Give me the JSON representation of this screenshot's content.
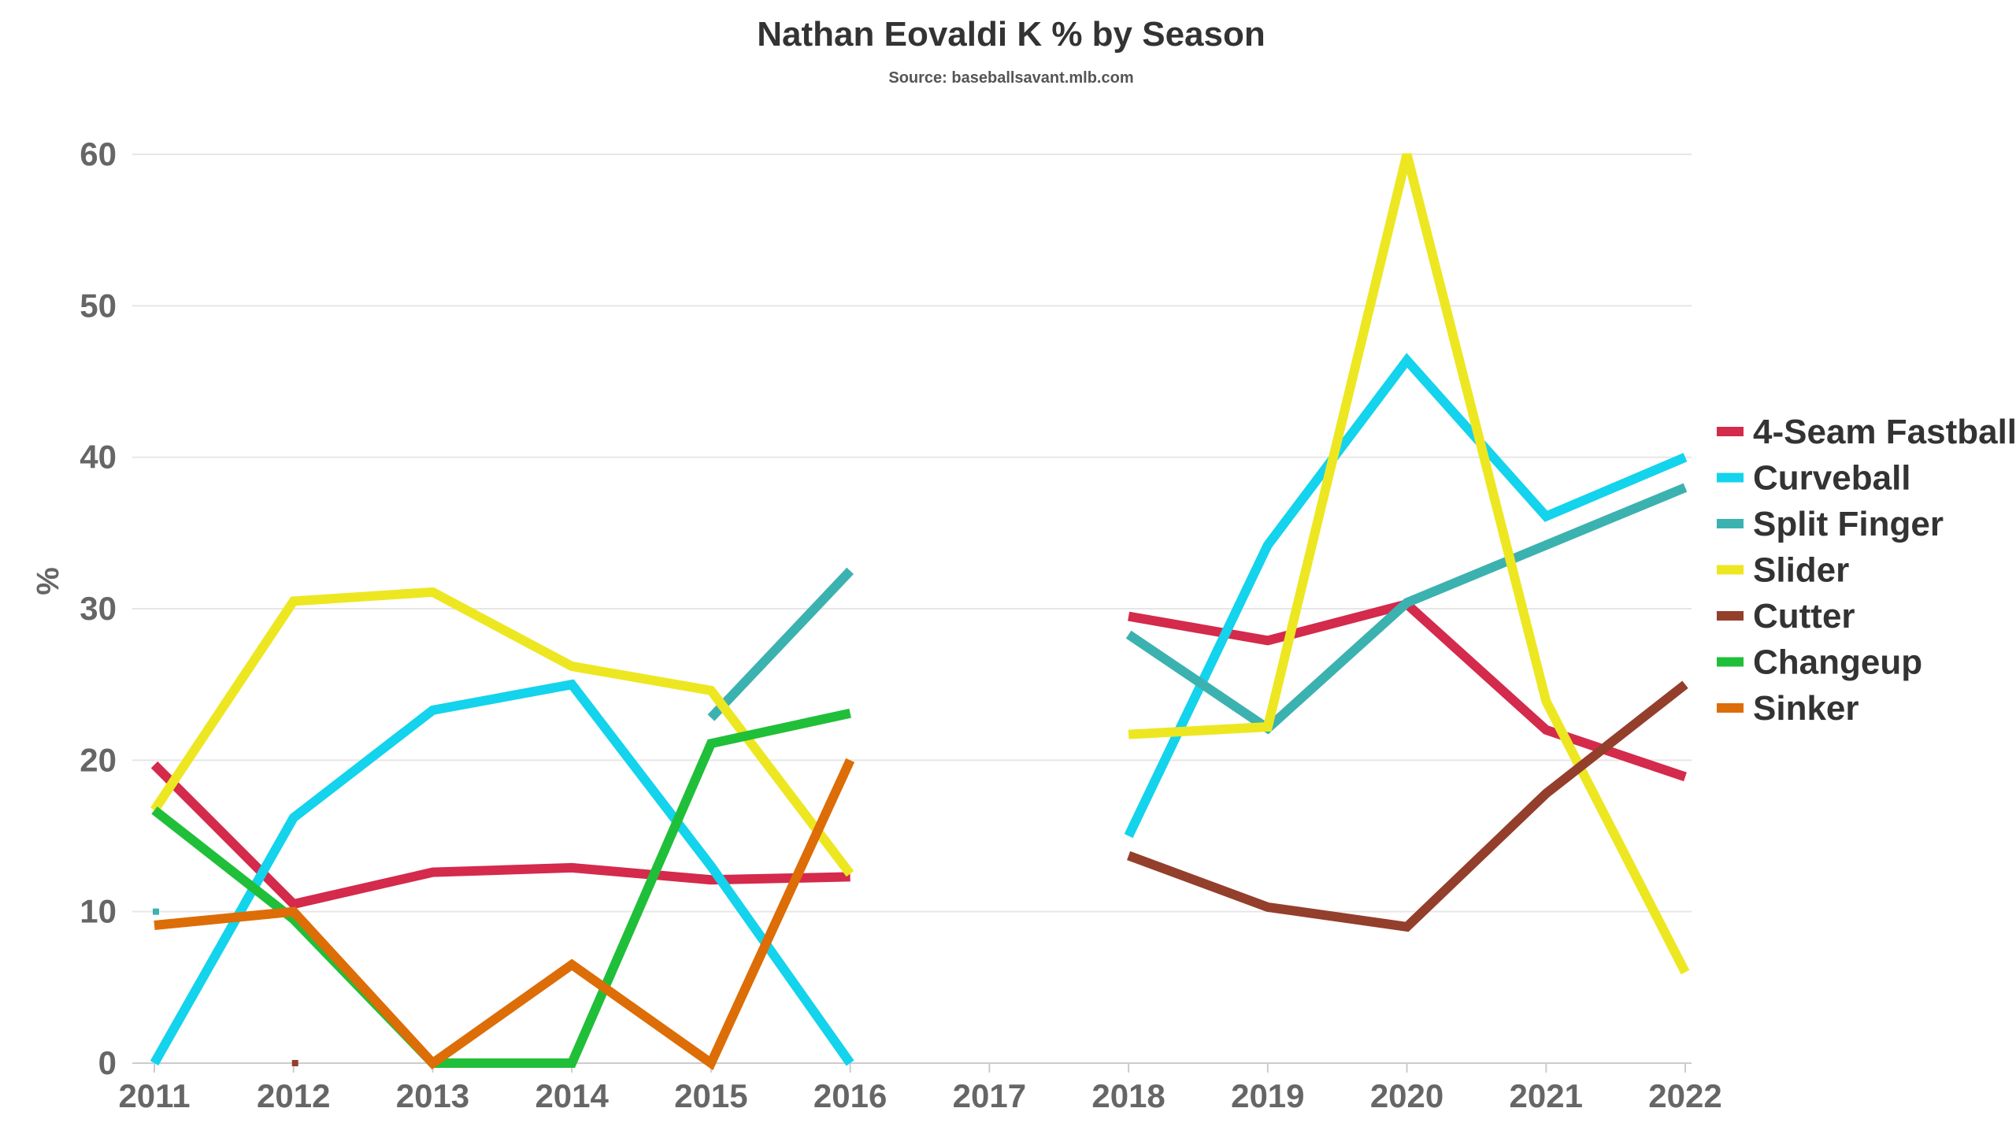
{
  "chart_data": {
    "type": "line",
    "title": "Nathan Eovaldi K % by Season",
    "subtitle": "Source: baseballsavant.mlb.com",
    "xlabel": "",
    "ylabel": "%",
    "x": [
      2011,
      2012,
      2013,
      2014,
      2015,
      2016,
      2017,
      2018,
      2019,
      2020,
      2021,
      2022
    ],
    "x_labels": [
      "2011",
      "2012",
      "2013",
      "2014",
      "2015",
      "2016",
      "2017",
      "2018",
      "2019",
      "2020",
      "2021",
      "2022"
    ],
    "ylim": [
      0,
      60
    ],
    "yticks": [
      0,
      10,
      20,
      30,
      40,
      50,
      60
    ],
    "ytick_labels": [
      "0",
      "10",
      "20",
      "30",
      "40",
      "50",
      "60"
    ],
    "grid": true,
    "legend_position": "right",
    "series": [
      {
        "name": "4-Seam Fastball",
        "color": "#d42a4c",
        "values": [
          19.7,
          10.5,
          12.6,
          12.9,
          12.1,
          12.3,
          null,
          29.5,
          27.9,
          30.3,
          22.0,
          18.9
        ]
      },
      {
        "name": "Curveball",
        "color": "#14d3ec",
        "values": [
          0,
          16.2,
          23.3,
          25.0,
          13.0,
          0,
          null,
          15.0,
          34.2,
          46.4,
          36.1,
          40.0
        ]
      },
      {
        "name": "Split Finger",
        "color": "#3bb2b0",
        "values": [
          10.0,
          null,
          null,
          null,
          22.8,
          32.5,
          null,
          28.3,
          22.1,
          30.4,
          34.2,
          38.0
        ]
      },
      {
        "name": "Slider",
        "color": "#ede722",
        "values": [
          16.7,
          30.5,
          31.1,
          26.2,
          24.6,
          12.5,
          null,
          21.7,
          22.2,
          60.0,
          23.9,
          6.0
        ]
      },
      {
        "name": "Cutter",
        "color": "#933f2c",
        "values": [
          null,
          0,
          null,
          null,
          null,
          null,
          null,
          13.7,
          10.3,
          9.0,
          17.8,
          25.0
        ]
      },
      {
        "name": "Changeup",
        "color": "#20bf39",
        "values": [
          16.7,
          9.5,
          0,
          0,
          21.1,
          23.1,
          null,
          null,
          null,
          null,
          null,
          null
        ]
      },
      {
        "name": "Sinker",
        "color": "#dd6d06",
        "values": [
          9.1,
          10.0,
          0,
          6.5,
          0,
          20.0,
          null,
          null,
          null,
          null,
          null,
          null
        ]
      }
    ]
  }
}
